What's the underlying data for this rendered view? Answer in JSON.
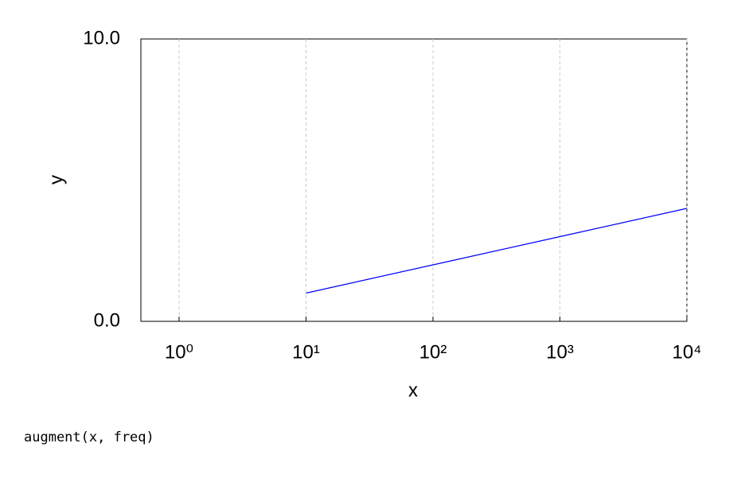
{
  "chart_data": {
    "type": "line",
    "x_label": "x",
    "y_label": "y",
    "x": [
      10,
      100,
      1000,
      10000
    ],
    "series": [
      {
        "color": "#0000ff",
        "values": [
          1,
          2,
          3,
          4
        ]
      }
    ],
    "xscale": "log",
    "xlim": [
      0.5,
      10000
    ],
    "xticks": [
      {
        "value": 1,
        "label": "10⁰"
      },
      {
        "value": 10,
        "label": "10¹"
      },
      {
        "value": 100,
        "label": "10²"
      },
      {
        "value": 1000,
        "label": "10³"
      },
      {
        "value": 10000,
        "label": "10⁴"
      }
    ],
    "ylim": [
      0,
      10
    ],
    "yticks": [
      {
        "value": 0,
        "label": "0.0"
      },
      {
        "value": 10,
        "label": "10.0"
      }
    ],
    "grid": "x",
    "footer": "augment(x, freq)"
  }
}
